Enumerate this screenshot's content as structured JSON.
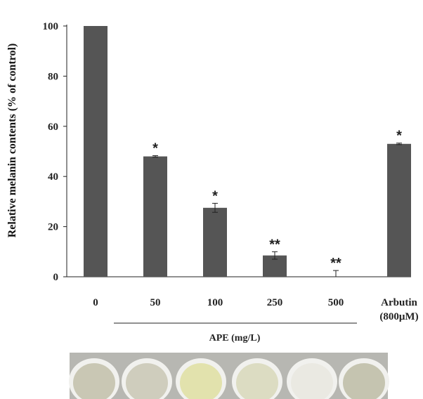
{
  "chart_data": {
    "type": "bar",
    "categories": [
      "0",
      "50",
      "100",
      "250",
      "500",
      "Arbutin"
    ],
    "category_sublabels": [
      "",
      "",
      "",
      "",
      "",
      "(800μM)"
    ],
    "values": [
      100,
      48,
      27.5,
      8.5,
      0,
      53
    ],
    "errors": [
      0,
      0.3,
      1.8,
      1.5,
      2.5,
      0.3
    ],
    "significance": [
      "",
      "*",
      "*",
      "**",
      "**",
      "*"
    ],
    "ylabel": "Relative melanin contents  (% of control)",
    "group_label": "APE (mg/L)",
    "ylim": [
      0,
      100
    ],
    "yticks": [
      0,
      20,
      40,
      60,
      80,
      100
    ],
    "bar_color": "#555555",
    "grid": false
  },
  "plate_image": {
    "wells": [
      {
        "color": "#c9c7b4"
      },
      {
        "color": "#cfcdbd"
      },
      {
        "color": "#e2e2ad"
      },
      {
        "color": "#dcdcc2"
      },
      {
        "color": "#eae9e2"
      },
      {
        "color": "#c5c4b0"
      }
    ]
  }
}
